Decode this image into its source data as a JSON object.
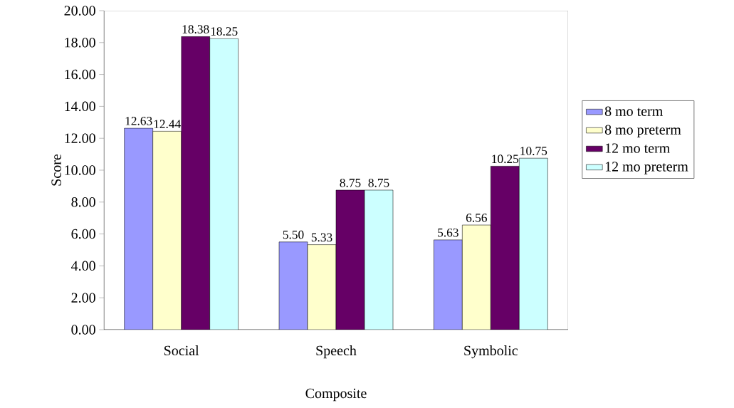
{
  "chart_data": {
    "type": "bar",
    "xlabel": "Composite",
    "ylabel": "Score",
    "categories": [
      "Social",
      "Speech",
      "Symbolic"
    ],
    "series": [
      {
        "name": "8 mo term",
        "color": "#9999ff",
        "values": [
          12.63,
          5.5,
          5.63
        ],
        "value_labels": [
          "12.63",
          "5.50",
          "5.63"
        ]
      },
      {
        "name": "8 mo preterm",
        "color": "#ffffcc",
        "values": [
          12.44,
          5.33,
          6.56
        ],
        "value_labels": [
          "12.44",
          "5.33",
          "6.56"
        ]
      },
      {
        "name": "12 mo term",
        "color": "#660066",
        "values": [
          18.38,
          8.75,
          10.25
        ],
        "value_labels": [
          "18.38",
          "8.75",
          "10.25"
        ]
      },
      {
        "name": "12 mo preterm",
        "color": "#ccffff",
        "values": [
          18.25,
          8.75,
          10.75
        ],
        "value_labels": [
          "18.25",
          "8.75",
          "10.75"
        ]
      }
    ],
    "ylim": [
      0,
      20
    ],
    "yticks": [
      {
        "value": 0,
        "label": "0.00"
      },
      {
        "value": 2,
        "label": "2.00"
      },
      {
        "value": 4,
        "label": "4.00"
      },
      {
        "value": 6,
        "label": "6.00"
      },
      {
        "value": 8,
        "label": "8.00"
      },
      {
        "value": 10,
        "label": "10.00"
      },
      {
        "value": 12,
        "label": "12.00"
      },
      {
        "value": 14,
        "label": "14.00"
      },
      {
        "value": 16,
        "label": "16.00"
      },
      {
        "value": 18,
        "label": "18.00"
      },
      {
        "value": 20,
        "label": "20.00"
      }
    ],
    "legend": "right"
  }
}
